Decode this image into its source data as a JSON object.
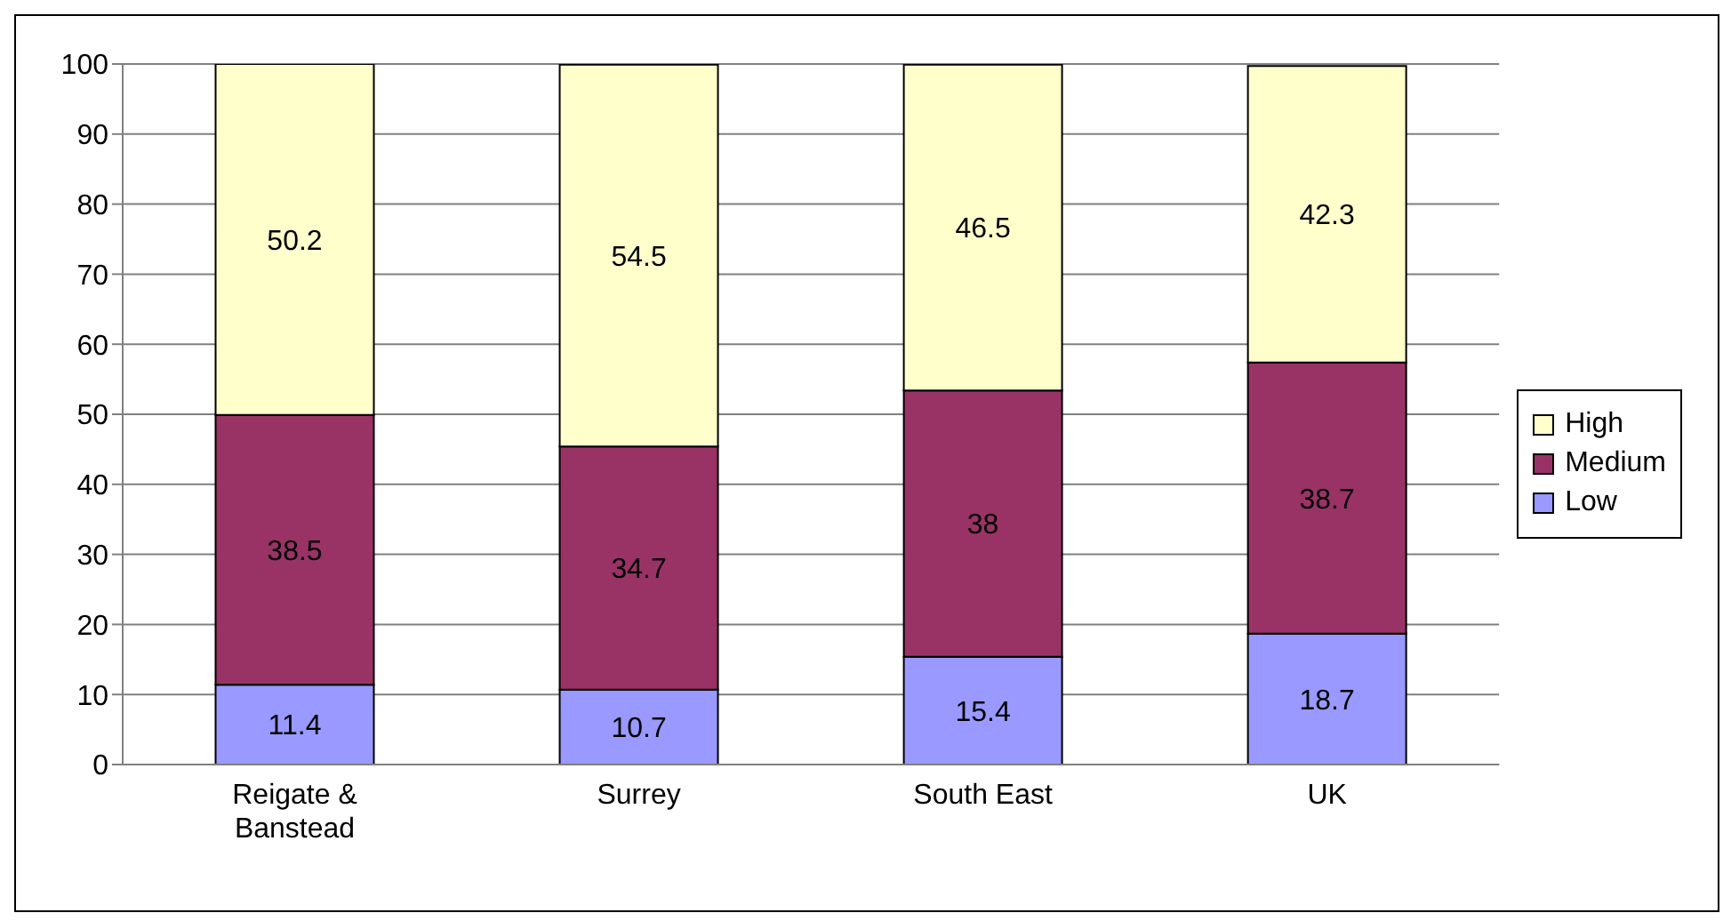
{
  "chart_data": {
    "type": "bar",
    "stacked": true,
    "categories": [
      "Reigate & Banstead",
      "Surrey",
      "South East",
      "UK"
    ],
    "series": [
      {
        "name": "Low",
        "color": "#9999ff",
        "values": [
          11.4,
          10.7,
          15.4,
          18.7
        ]
      },
      {
        "name": "Medium",
        "color": "#993366",
        "values": [
          38.5,
          34.7,
          38,
          38.7
        ]
      },
      {
        "name": "High",
        "color": "#ffffcc",
        "values": [
          50.2,
          54.5,
          46.5,
          42.3
        ]
      }
    ],
    "ylim": [
      0,
      100
    ],
    "yticks": [
      0,
      10,
      20,
      30,
      40,
      50,
      60,
      70,
      80,
      90,
      100
    ],
    "grid": "y",
    "legend": "right",
    "data_labels": true
  }
}
